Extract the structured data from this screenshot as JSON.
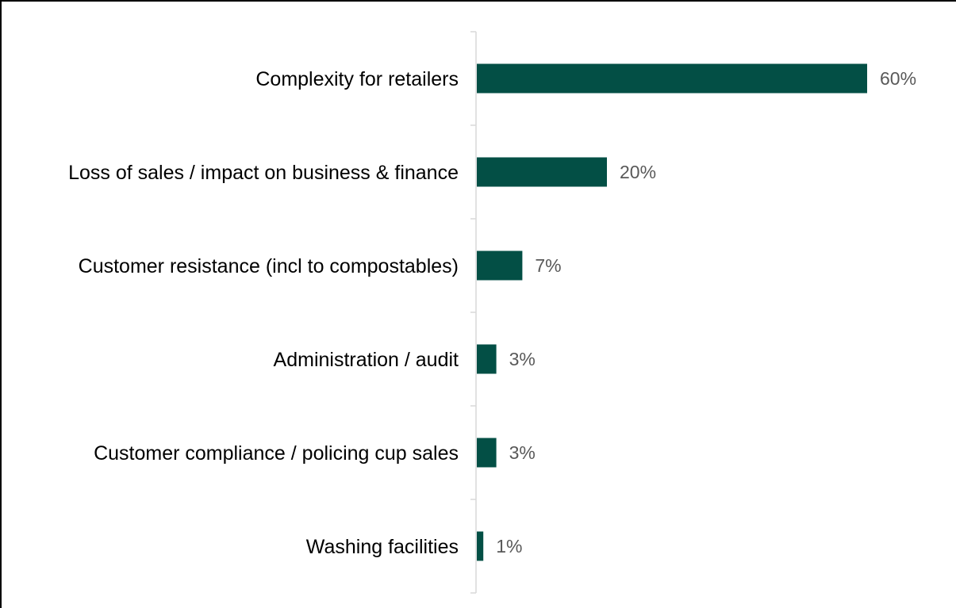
{
  "chart_data": {
    "type": "bar",
    "orientation": "horizontal",
    "categories": [
      "Complexity for retailers",
      "Loss of sales / impact on business & finance",
      "Customer resistance (incl to compostables)",
      "Administration / audit",
      "Customer compliance / policing cup sales",
      "Washing facilities"
    ],
    "values": [
      60,
      20,
      7,
      3,
      3,
      1
    ],
    "value_labels": [
      "60%",
      "20%",
      "7%",
      "3%",
      "3%",
      "1%"
    ],
    "unit": "%",
    "title": "",
    "xlabel": "",
    "ylabel": "",
    "xlim": [
      0,
      60
    ],
    "grid": false,
    "legend": "none",
    "bar_color": "#034f45",
    "axis_color": "#d9d9d9",
    "value_label_color": "#595959"
  }
}
